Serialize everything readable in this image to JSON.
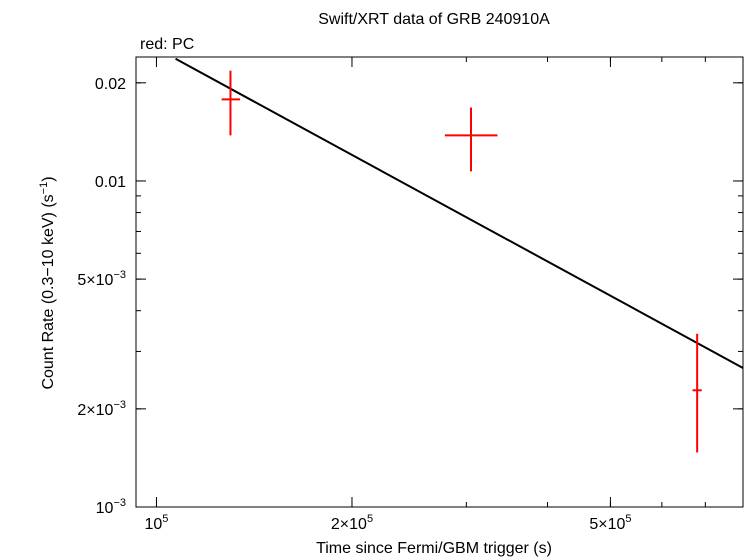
{
  "chart_data": {
    "type": "scatter",
    "title": "Swift/XRT data of GRB 240910A",
    "subtitle": "red: PC",
    "xlabel": "Time since Fermi/GBM trigger (s)",
    "ylabel_text": "Count Rate (0.3−10 keV) (s",
    "ylabel_sup": "−1",
    "ylabel_close": ")",
    "xscale": "log",
    "yscale": "log",
    "xlim": [
      93000,
      800000
    ],
    "ylim": [
      0.001,
      0.024
    ],
    "x_ticks": [
      {
        "value": 100000,
        "mant": "10",
        "exp": "5"
      },
      {
        "value": 200000,
        "mant": "2×10",
        "exp": "5"
      },
      {
        "value": 500000,
        "mant": "5×10",
        "exp": "5"
      }
    ],
    "y_ticks": [
      {
        "value": 0.001,
        "mant": "10",
        "exp": "−3"
      },
      {
        "value": 0.002,
        "mant": "2×10",
        "exp": "−3"
      },
      {
        "value": 0.005,
        "mant": "5×10",
        "exp": "−3"
      },
      {
        "value": 0.01,
        "mant": "0.01",
        "exp": ""
      },
      {
        "value": 0.02,
        "mant": "0.02",
        "exp": ""
      }
    ],
    "series": [
      {
        "color": "#ff0000",
        "points": [
          {
            "x": 130000,
            "xlo": 126000,
            "xhi": 134500,
            "y": 0.0178,
            "ylo": 0.0138,
            "yhi": 0.0218
          },
          {
            "x": 305000,
            "xlo": 278000,
            "xhi": 335000,
            "y": 0.0138,
            "ylo": 0.0107,
            "yhi": 0.0168
          },
          {
            "x": 680000,
            "xlo": 669000,
            "xhi": 691000,
            "y": 0.00228,
            "ylo": 0.00147,
            "yhi": 0.0034
          }
        ]
      }
    ],
    "model": {
      "color": "#000000",
      "x": [
        107000,
        800000
      ],
      "y": [
        0.0237,
        0.00267
      ]
    }
  }
}
